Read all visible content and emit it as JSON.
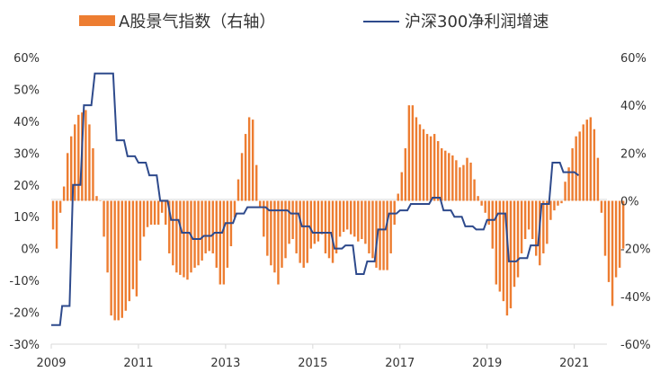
{
  "chart_data": {
    "type": "bar+line",
    "title": "",
    "legend": {
      "placement": "top",
      "entries": [
        "A股景气指数（右轴）",
        "沪深300净利润增速"
      ]
    },
    "x_ticks": [
      "2009",
      "2011",
      "2013",
      "2015",
      "2017",
      "2019",
      "2021"
    ],
    "x_range": [
      2009.0,
      2021.75
    ],
    "left_axis": {
      "range": [
        -30,
        60
      ],
      "ticks": [
        "60%",
        "50%",
        "40%",
        "30%",
        "20%",
        "10%",
        "0%",
        "-10%",
        "-20%",
        "-30%"
      ],
      "tick_values": [
        60,
        50,
        40,
        30,
        20,
        10,
        0,
        -10,
        -20,
        -30
      ]
    },
    "right_axis": {
      "range": [
        -60,
        60
      ],
      "ticks": [
        "60%",
        "40%",
        "20%",
        "0%",
        "-20%",
        "-40%",
        "-60%"
      ],
      "tick_values": [
        60,
        40,
        20,
        0,
        -20,
        -40,
        -60
      ]
    },
    "colors": {
      "bar": "#ed7d31",
      "line": "#2e4a8c",
      "axis": "#d9d9d9"
    },
    "series": [
      {
        "name": "A股景气指数（右轴）",
        "axis": "right",
        "kind": "bar",
        "start": 2009.0,
        "step": 0.0833333,
        "values": [
          -12,
          -20,
          -5,
          6,
          20,
          27,
          32,
          36,
          37,
          38,
          32,
          22,
          2,
          0,
          -15,
          -30,
          -48,
          -50,
          -50,
          -49,
          -46,
          -42,
          -37,
          -40,
          -25,
          -15,
          -11,
          -10,
          -10,
          -10,
          -5,
          -10,
          -22,
          -27,
          -30,
          -31,
          -32,
          -33,
          -30,
          -28,
          -27,
          -25,
          -22,
          -21,
          -22,
          -28,
          -35,
          -35,
          -28,
          -19,
          -7,
          9,
          20,
          28,
          35,
          34,
          15,
          -3,
          -15,
          -23,
          -27,
          -30,
          -35,
          -28,
          -24,
          -18,
          -16,
          -22,
          -26,
          -28,
          -26,
          -20,
          -18,
          -17,
          -14,
          -22,
          -24,
          -26,
          -22,
          -15,
          -13,
          -12,
          -14,
          -15,
          -17,
          -16,
          -18,
          -22,
          -24,
          -28,
          -29,
          -29,
          -29,
          -22,
          -10,
          3,
          12,
          22,
          40,
          40,
          35,
          32,
          30,
          28,
          27,
          28,
          25,
          22,
          21,
          20,
          19,
          17,
          14,
          15,
          18,
          16,
          9,
          2,
          -2,
          -5,
          -10,
          -20,
          -35,
          -38,
          -42,
          -48,
          -45,
          -36,
          -32,
          -22,
          -16,
          -12,
          -16,
          -23,
          -27,
          -22,
          -18,
          -8,
          -4,
          -2,
          -1,
          8,
          14,
          22,
          27,
          29,
          32,
          34,
          35,
          30,
          18,
          -5,
          -23,
          -34,
          -44,
          -32,
          -28,
          -20
        ]
      },
      {
        "name": "沪深300净利润增速",
        "axis": "left",
        "kind": "line",
        "points": [
          [
            2009.0,
            -24
          ],
          [
            2009.2,
            -24
          ],
          [
            2009.25,
            -18
          ],
          [
            2009.42,
            -18
          ],
          [
            2009.5,
            20
          ],
          [
            2009.67,
            20
          ],
          [
            2009.75,
            45
          ],
          [
            2009.92,
            45
          ],
          [
            2010.0,
            55
          ],
          [
            2010.42,
            55
          ],
          [
            2010.5,
            34
          ],
          [
            2010.67,
            34
          ],
          [
            2010.75,
            29
          ],
          [
            2010.92,
            29
          ],
          [
            2011.0,
            27
          ],
          [
            2011.17,
            27
          ],
          [
            2011.25,
            23
          ],
          [
            2011.42,
            23
          ],
          [
            2011.5,
            15
          ],
          [
            2011.67,
            15
          ],
          [
            2011.75,
            9
          ],
          [
            2011.92,
            9
          ],
          [
            2012.0,
            5
          ],
          [
            2012.17,
            5
          ],
          [
            2012.25,
            3
          ],
          [
            2012.42,
            3
          ],
          [
            2012.5,
            4
          ],
          [
            2012.67,
            4
          ],
          [
            2012.75,
            5
          ],
          [
            2012.92,
            5
          ],
          [
            2013.0,
            8
          ],
          [
            2013.17,
            8
          ],
          [
            2013.25,
            11
          ],
          [
            2013.42,
            11
          ],
          [
            2013.5,
            13
          ],
          [
            2013.92,
            13
          ],
          [
            2014.0,
            12
          ],
          [
            2014.42,
            12
          ],
          [
            2014.5,
            11
          ],
          [
            2014.67,
            11
          ],
          [
            2014.75,
            7
          ],
          [
            2014.92,
            7
          ],
          [
            2015.0,
            5
          ],
          [
            2015.17,
            5
          ],
          [
            2015.25,
            5
          ],
          [
            2015.42,
            5
          ],
          [
            2015.5,
            0
          ],
          [
            2015.67,
            0
          ],
          [
            2015.75,
            1
          ],
          [
            2015.92,
            1
          ],
          [
            2016.0,
            -8
          ],
          [
            2016.17,
            -8
          ],
          [
            2016.25,
            -4
          ],
          [
            2016.42,
            -4
          ],
          [
            2016.5,
            6
          ],
          [
            2016.67,
            6
          ],
          [
            2016.75,
            11
          ],
          [
            2016.92,
            11
          ],
          [
            2017.0,
            12
          ],
          [
            2017.17,
            12
          ],
          [
            2017.25,
            14
          ],
          [
            2017.42,
            14
          ],
          [
            2017.5,
            14
          ],
          [
            2017.67,
            14
          ],
          [
            2017.75,
            16
          ],
          [
            2017.92,
            16
          ],
          [
            2018.0,
            12
          ],
          [
            2018.17,
            12
          ],
          [
            2018.25,
            10
          ],
          [
            2018.42,
            10
          ],
          [
            2018.5,
            7
          ],
          [
            2018.67,
            7
          ],
          [
            2018.75,
            6
          ],
          [
            2018.92,
            6
          ],
          [
            2019.0,
            9
          ],
          [
            2019.17,
            9
          ],
          [
            2019.25,
            11
          ],
          [
            2019.42,
            11
          ],
          [
            2019.5,
            -4
          ],
          [
            2019.67,
            -4
          ],
          [
            2019.75,
            -3
          ],
          [
            2019.92,
            -3
          ],
          [
            2020.0,
            1
          ],
          [
            2020.17,
            1
          ],
          [
            2020.25,
            14
          ],
          [
            2020.42,
            14
          ],
          [
            2020.5,
            27
          ],
          [
            2020.67,
            27
          ],
          [
            2020.75,
            24
          ],
          [
            2020.92,
            24
          ],
          [
            2021.0,
            24
          ],
          [
            2021.1,
            23
          ]
        ]
      }
    ]
  }
}
